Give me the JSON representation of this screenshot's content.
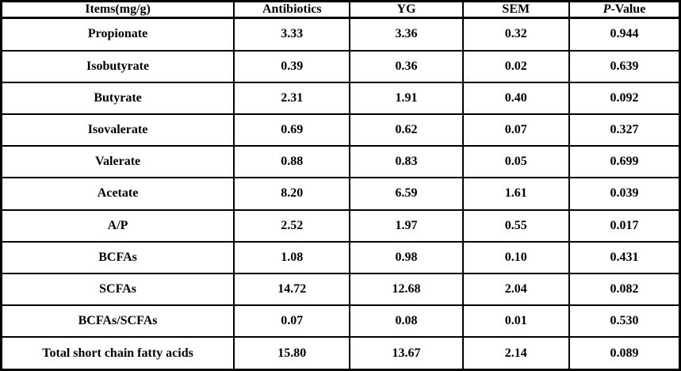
{
  "header": {
    "columns": [
      {
        "label": "Items(mg/g)"
      },
      {
        "label": "Antibiotics"
      },
      {
        "label": "YG"
      },
      {
        "label": "SEM"
      },
      {
        "italic": "P",
        "label": "-Value"
      }
    ]
  },
  "rows": [
    {
      "item": "Propionate",
      "antibiotics": "3.33",
      "yg": "3.36",
      "sem": "0.32",
      "p_value": "0.944"
    },
    {
      "item": "Isobutyrate",
      "antibiotics": "0.39",
      "yg": "0.36",
      "sem": "0.02",
      "p_value": "0.639"
    },
    {
      "item": "Butyrate",
      "antibiotics": "2.31",
      "yg": "1.91",
      "sem": "0.40",
      "p_value": "0.092"
    },
    {
      "item": "Isovalerate",
      "antibiotics": "0.69",
      "yg": "0.62",
      "sem": "0.07",
      "p_value": "0.327"
    },
    {
      "item": "Valerate",
      "antibiotics": "0.88",
      "yg": "0.83",
      "sem": "0.05",
      "p_value": "0.699"
    },
    {
      "item": "Acetate",
      "antibiotics": "8.20",
      "yg": "6.59",
      "sem": "1.61",
      "p_value": "0.039"
    },
    {
      "item": "A/P",
      "antibiotics": "2.52",
      "yg": "1.97",
      "sem": "0.55",
      "p_value": "0.017"
    },
    {
      "item": "BCFAs",
      "antibiotics": "1.08",
      "yg": "0.98",
      "sem": "0.10",
      "p_value": "0.431"
    },
    {
      "item": "SCFAs",
      "antibiotics": "14.72",
      "yg": "12.68",
      "sem": "2.04",
      "p_value": "0.082"
    },
    {
      "item": "BCFAs/SCFAs",
      "antibiotics": "0.07",
      "yg": "0.08",
      "sem": "0.01",
      "p_value": "0.530"
    },
    {
      "item": "Total short chain fatty acids",
      "antibiotics": "15.80",
      "yg": "13.67",
      "sem": "2.14",
      "p_value": "0.089"
    }
  ],
  "row_keys": [
    "item",
    "antibiotics",
    "yg",
    "sem",
    "p_value"
  ]
}
